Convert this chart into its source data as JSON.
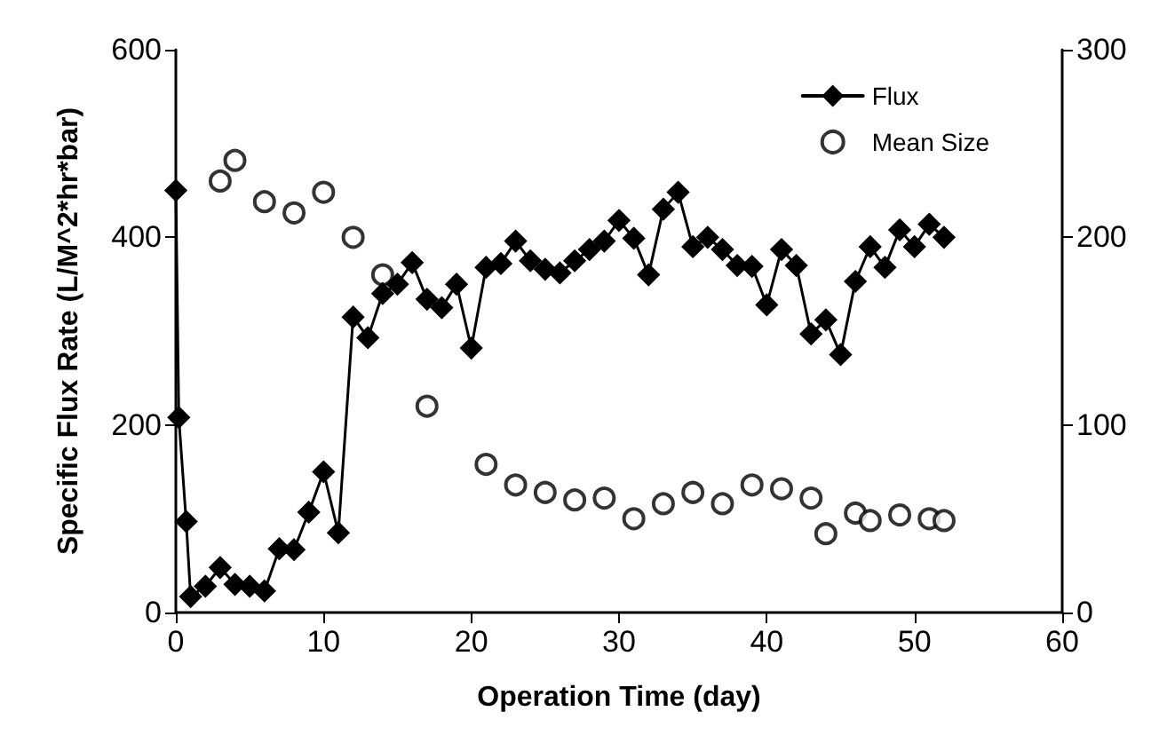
{
  "chart_data": {
    "type": "line",
    "xlabel": "Operation Time (day)",
    "ylabel": "Specific Flux Rate (L/M^2*hr*bar)",
    "xlim": [
      0,
      60
    ],
    "xticks": [
      0,
      10,
      20,
      30,
      40,
      50,
      60
    ],
    "ylim": [
      0,
      600
    ],
    "yticks": [
      0,
      200,
      400,
      600
    ],
    "y2lim": [
      0,
      300
    ],
    "y2ticks": [
      0,
      100,
      200,
      300
    ],
    "grid": false,
    "legend": "top right",
    "series": [
      {
        "name": "Flux",
        "color": "#000000",
        "marker": "diamond",
        "x": [
          0,
          0.2,
          0.7,
          1,
          2,
          3,
          4,
          5,
          6,
          7,
          8,
          9,
          10,
          11,
          12,
          13,
          14,
          15,
          16,
          17,
          18,
          19,
          20,
          21,
          22,
          23,
          24,
          25,
          26,
          27,
          28,
          29,
          30,
          31,
          32,
          33,
          34,
          35,
          36,
          37,
          38,
          39,
          40,
          41,
          42,
          43,
          44,
          45,
          46,
          47,
          48,
          49,
          50,
          51,
          52
        ],
        "values": [
          450,
          208,
          97,
          17,
          28,
          48,
          30,
          28,
          23,
          68,
          67,
          107,
          150,
          85,
          315,
          293,
          340,
          350,
          373,
          334,
          325,
          350,
          282,
          368,
          372,
          396,
          375,
          366,
          362,
          375,
          387,
          396,
          418,
          399,
          360,
          430,
          448,
          390,
          400,
          387,
          370,
          369,
          328,
          387,
          370,
          297,
          312,
          275,
          353,
          390,
          368,
          408,
          390,
          414,
          400
        ]
      },
      {
        "name": "Mean Size",
        "type": "scatter",
        "axis": "y2",
        "color": "#000000",
        "marker": "circle",
        "x": [
          3,
          4,
          6,
          8,
          10,
          12,
          14,
          17,
          21,
          23,
          25,
          27,
          29,
          31,
          33,
          35,
          37,
          39,
          41,
          43,
          44,
          46,
          47,
          49,
          51,
          52
        ],
        "values": [
          230,
          241,
          219,
          213,
          224,
          200,
          180,
          110,
          79,
          68,
          64,
          60,
          61,
          50,
          58,
          64,
          58,
          68,
          66,
          61,
          42,
          53,
          49,
          52,
          50,
          49
        ]
      }
    ]
  }
}
